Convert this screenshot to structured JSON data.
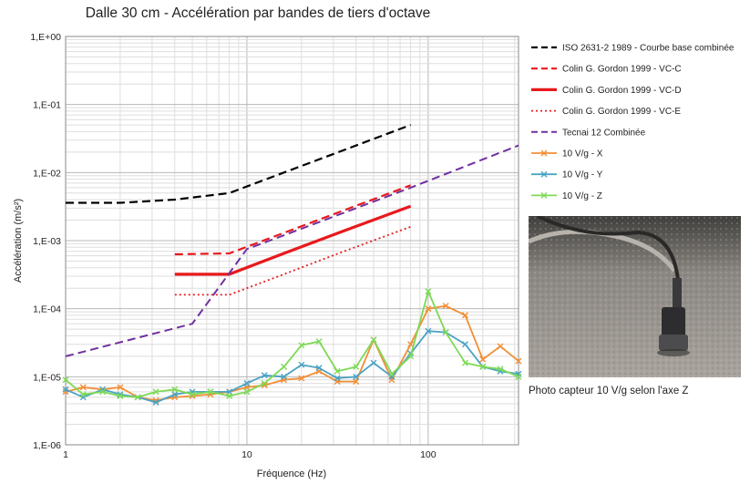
{
  "chart_data": {
    "type": "line",
    "title": "Dalle 30 cm - Accélération par bandes de tiers d'octave",
    "xlabel": "Fréquence (Hz)",
    "ylabel": "Accélération (m/s²)",
    "x_scale": "log",
    "y_scale": "log",
    "xlim": [
      1,
      315
    ],
    "ylim": [
      1e-06,
      1
    ],
    "x_tick_labels": [
      "1",
      "10",
      "100"
    ],
    "y_tick_labels": [
      "1,E-06",
      "1,E-05",
      "1,E-04",
      "1,E-03",
      "1,E-02",
      "1,E-01",
      "1,E+00"
    ],
    "grid": true,
    "legend_position": "right",
    "series": [
      {
        "name": "ISO 2631-2 1989 - Courbe base combinée",
        "color": "#000000",
        "style": "dashed",
        "width": 2.2,
        "marker": "none",
        "x": [
          1,
          2,
          4,
          8,
          16,
          32,
          80
        ],
        "y": [
          0.0036,
          0.0036,
          0.004,
          0.005,
          0.01,
          0.02,
          0.05
        ]
      },
      {
        "name": "Colin G. Gordon 1999 - VC-C",
        "color": "#e8191c",
        "style": "dashed",
        "width": 2.2,
        "marker": "none",
        "x": [
          4,
          8,
          16,
          32,
          80
        ],
        "y": [
          0.00063,
          0.00065,
          0.0013,
          0.0026,
          0.0065
        ]
      },
      {
        "name": "Colin G. Gordon 1999 - VC-D",
        "color": "#e8191c",
        "style": "solid",
        "width": 3.2,
        "marker": "none",
        "x": [
          4,
          8,
          16,
          32,
          80
        ],
        "y": [
          0.00032,
          0.00032,
          0.00065,
          0.0013,
          0.0032
        ]
      },
      {
        "name": "Colin G. Gordon 1999 - VC-E",
        "color": "#e8191c",
        "style": "dotted",
        "width": 1.8,
        "marker": "none",
        "x": [
          4,
          8,
          16,
          32,
          80
        ],
        "y": [
          0.00016,
          0.00016,
          0.00032,
          0.00065,
          0.0016
        ]
      },
      {
        "name": "Tecnai 12 Combinée",
        "color": "#7030a0",
        "style": "dashed",
        "width": 2,
        "marker": "none",
        "x": [
          1,
          5,
          10,
          20,
          40,
          80,
          315
        ],
        "y": [
          2e-05,
          6e-05,
          0.00075,
          0.0015,
          0.003,
          0.006,
          0.025
        ]
      },
      {
        "name": "10 V/g - X",
        "color": "#f28e35",
        "style": "solid",
        "width": 1.8,
        "marker": "x",
        "x": [
          1,
          1.25,
          1.6,
          2,
          2.5,
          3.15,
          4,
          5,
          6.3,
          8,
          10,
          12.5,
          16,
          20,
          25,
          31.5,
          40,
          50,
          63,
          80,
          100,
          125,
          160,
          200,
          250,
          315
        ],
        "y": [
          6e-06,
          7e-06,
          6.5e-06,
          7e-06,
          5e-06,
          4.5e-06,
          5e-06,
          5.2e-06,
          5.5e-06,
          6e-06,
          7e-06,
          7.5e-06,
          9e-06,
          9.5e-06,
          1.2e-05,
          8.5e-06,
          8.5e-06,
          3.5e-05,
          9e-06,
          3e-05,
          0.0001,
          0.00011,
          8e-05,
          1.8e-05,
          2.8e-05,
          1.7e-05
        ]
      },
      {
        "name": "10 V/g - Y",
        "color": "#4ba3c3",
        "style": "solid",
        "width": 1.8,
        "marker": "x",
        "x": [
          1,
          1.25,
          1.6,
          2,
          2.5,
          3.15,
          4,
          5,
          6.3,
          8,
          10,
          12.5,
          16,
          20,
          25,
          31.5,
          40,
          50,
          63,
          80,
          100,
          125,
          160,
          200,
          250,
          315
        ],
        "y": [
          6.5e-06,
          5e-06,
          6.5e-06,
          5.5e-06,
          5e-06,
          4.2e-06,
          5.5e-06,
          6e-06,
          6e-06,
          6e-06,
          8e-06,
          1.05e-05,
          1e-05,
          1.5e-05,
          1.35e-05,
          9.5e-06,
          1e-05,
          1.6e-05,
          1e-05,
          2.2e-05,
          4.7e-05,
          4.5e-05,
          3e-05,
          1.4e-05,
          1.2e-05,
          1.1e-05
        ]
      },
      {
        "name": "10 V/g - Z",
        "color": "#7ed957",
        "style": "solid",
        "width": 1.8,
        "marker": "x",
        "x": [
          1,
          1.25,
          1.6,
          2,
          2.5,
          3.15,
          4,
          5,
          6.3,
          8,
          10,
          12.5,
          16,
          20,
          25,
          31.5,
          40,
          50,
          63,
          80,
          100,
          125,
          160,
          200,
          250,
          315
        ],
        "y": [
          9e-06,
          5.5e-06,
          6e-06,
          5.2e-06,
          5e-06,
          6e-06,
          6.5e-06,
          5.5e-06,
          6e-06,
          5.2e-06,
          6e-06,
          8e-06,
          1.4e-05,
          2.9e-05,
          3.3e-05,
          1.2e-05,
          1.4e-05,
          3.5e-05,
          1.1e-05,
          2e-05,
          0.00018,
          4.5e-05,
          1.6e-05,
          1.4e-05,
          1.3e-05,
          1e-05
        ]
      }
    ]
  },
  "photo": {
    "caption": "Photo capteur 10 V/g selon l'axe Z"
  }
}
